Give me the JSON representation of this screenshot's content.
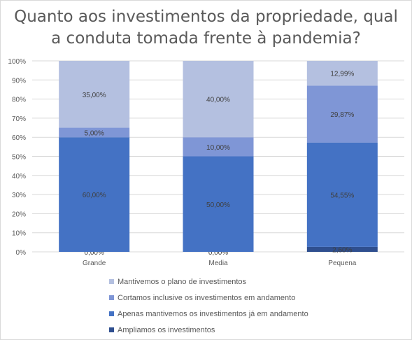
{
  "chart_data": {
    "type": "bar",
    "stacked": true,
    "percent": true,
    "title": "Quanto aos investimentos da propriedade, qual a conduta tomada frente à pandemia?",
    "title_lines": [
      "Quanto aos investimentos da propriedade, qual",
      "a conduta tomada frente à pandemia?"
    ],
    "categories": [
      "Grande",
      "Media",
      "Pequena"
    ],
    "ylim": [
      0,
      100
    ],
    "yticks": [
      "0%",
      "10%",
      "20%",
      "30%",
      "40%",
      "50%",
      "60%",
      "70%",
      "80%",
      "90%",
      "100%"
    ],
    "grid": true,
    "legend_position": "bottom",
    "series": [
      {
        "name": "Ampliamos os investimentos",
        "values": [
          0.0,
          0.0,
          2.6
        ],
        "labels": [
          "0,00%",
          "0,00%",
          "2,60%"
        ],
        "color": "#2f4f8f"
      },
      {
        "name": "Apenas mantivemos os investimentos já em andamento",
        "values": [
          60.0,
          50.0,
          54.55
        ],
        "labels": [
          "60,00%",
          "50,00%",
          "54,55%"
        ],
        "color": "#4472c4"
      },
      {
        "name": "Cortamos inclusive os investimentos em andamento",
        "values": [
          5.0,
          10.0,
          29.87
        ],
        "labels": [
          "5,00%",
          "10,00%",
          "29,87%"
        ],
        "color": "#7f96d6"
      },
      {
        "name": "Mantivemos o plano de investimentos",
        "values": [
          35.0,
          40.0,
          12.99
        ],
        "labels": [
          "35,00%",
          "40,00%",
          "12,99%"
        ],
        "color": "#b4c0e0"
      }
    ],
    "legend_order": [
      3,
      2,
      1,
      0
    ]
  }
}
